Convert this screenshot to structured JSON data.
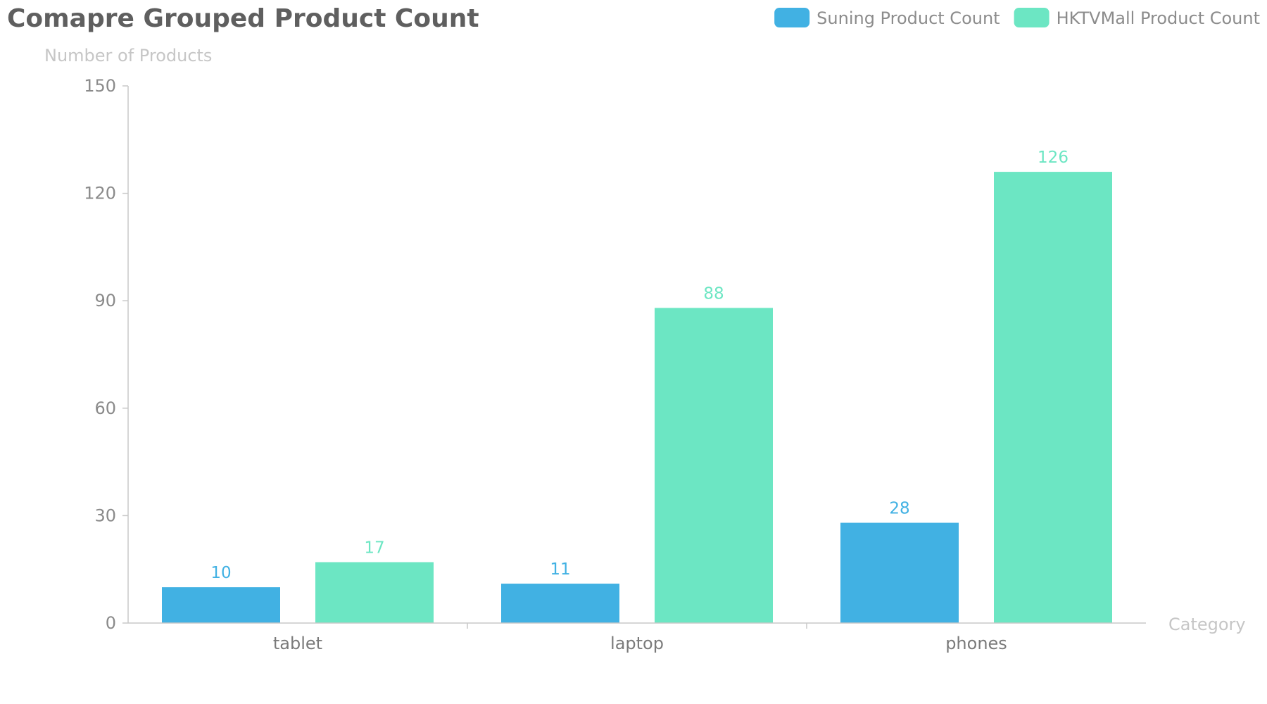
{
  "chart_data": {
    "type": "bar",
    "title": "Comapre Grouped Product Count",
    "xlabel": "Category",
    "ylabel": "Number of Products",
    "categories": [
      "tablet",
      "laptop",
      "phones"
    ],
    "series": [
      {
        "name": "Suning Product Count",
        "values": [
          10,
          11,
          28
        ],
        "color": "#41b1e3"
      },
      {
        "name": "HKTVMall Product Count",
        "values": [
          17,
          88,
          126
        ],
        "color": "#6ce6c3"
      }
    ],
    "ylim": [
      0,
      150
    ],
    "yticks": [
      "0",
      "30",
      "60",
      "90",
      "120",
      "150"
    ],
    "grid": false,
    "legend_position": "top-right",
    "data_labels": true
  }
}
